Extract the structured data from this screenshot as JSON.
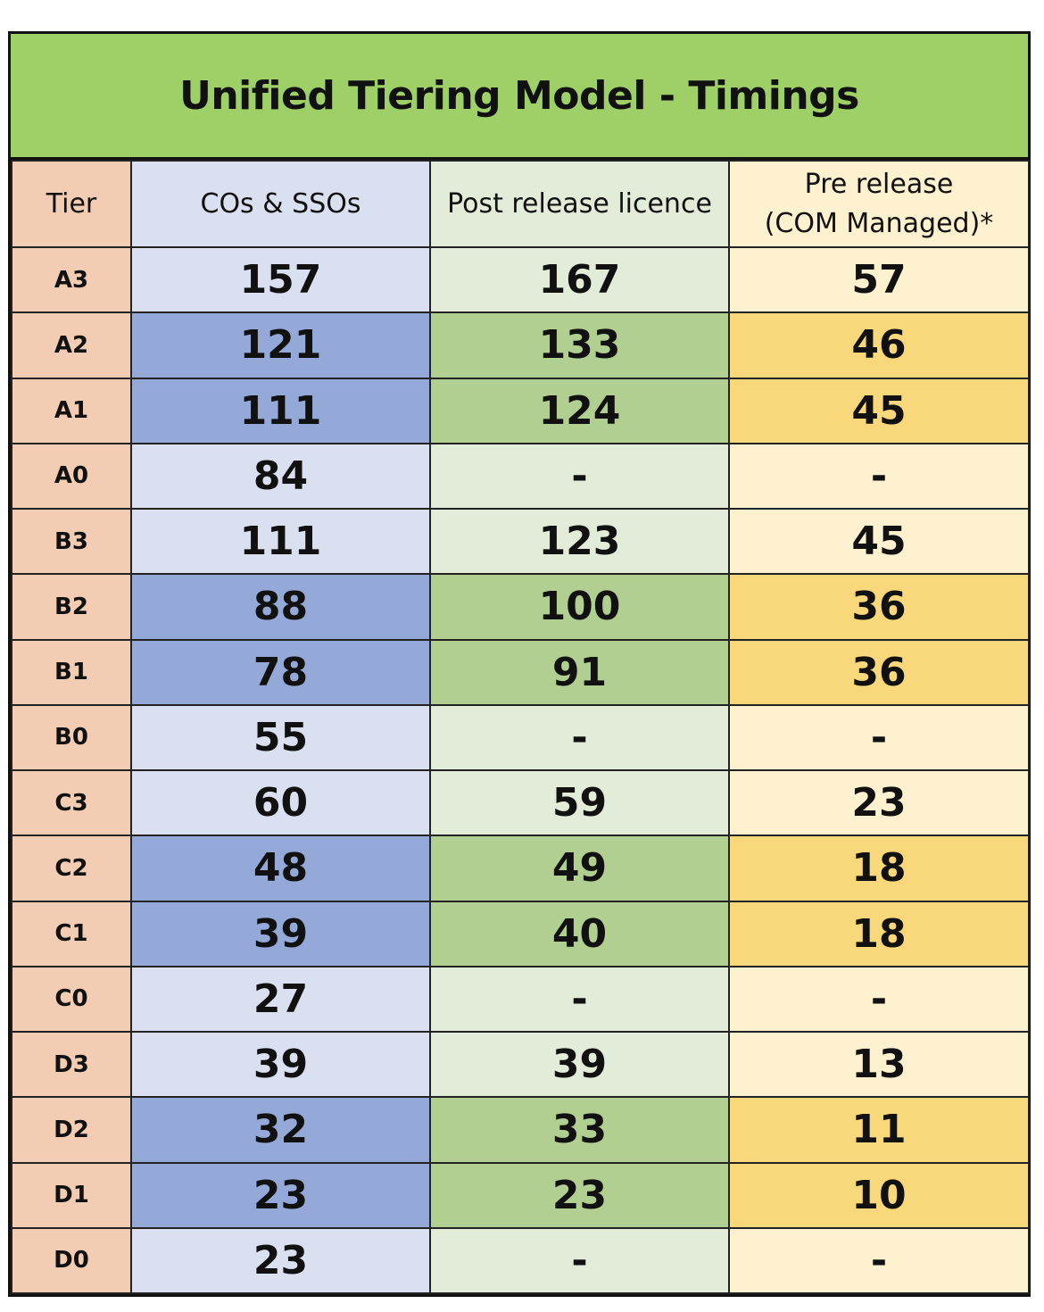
{
  "title": "Unified Tiering Model - Timings",
  "headers": {
    "tier": "Tier",
    "cos_ssos": "COs & SSOs",
    "post_release": "Post release licence",
    "pre_release_line1": "Pre release",
    "pre_release_line2": "(COM Managed)*"
  },
  "colors": {
    "title_bg": "#9fd067",
    "tier_bg": "#f2cdb4",
    "cos_light": "#dbe0f1",
    "cos_dark": "#95a9d8",
    "post_light": "#e2ecd9",
    "post_dark": "#b2cf92",
    "pre_light": "#fdf1d0",
    "pre_dark": "#f8d87b"
  },
  "rows": [
    {
      "tier": "A3",
      "cos": "157",
      "post": "167",
      "pre": "57",
      "shade": "light"
    },
    {
      "tier": "A2",
      "cos": "121",
      "post": "133",
      "pre": "46",
      "shade": "dark"
    },
    {
      "tier": "A1",
      "cos": "111",
      "post": "124",
      "pre": "45",
      "shade": "dark"
    },
    {
      "tier": "A0",
      "cos": "84",
      "post": "-",
      "pre": "-",
      "shade": "light"
    },
    {
      "tier": "B3",
      "cos": "111",
      "post": "123",
      "pre": "45",
      "shade": "light"
    },
    {
      "tier": "B2",
      "cos": "88",
      "post": "100",
      "pre": "36",
      "shade": "dark"
    },
    {
      "tier": "B1",
      "cos": "78",
      "post": "91",
      "pre": "36",
      "shade": "dark"
    },
    {
      "tier": "B0",
      "cos": "55",
      "post": "-",
      "pre": "-",
      "shade": "light"
    },
    {
      "tier": "C3",
      "cos": "60",
      "post": "59",
      "pre": "23",
      "shade": "light"
    },
    {
      "tier": "C2",
      "cos": "48",
      "post": "49",
      "pre": "18",
      "shade": "dark"
    },
    {
      "tier": "C1",
      "cos": "39",
      "post": "40",
      "pre": "18",
      "shade": "dark"
    },
    {
      "tier": "C0",
      "cos": "27",
      "post": "-",
      "pre": "-",
      "shade": "light"
    },
    {
      "tier": "D3",
      "cos": "39",
      "post": "39",
      "pre": "13",
      "shade": "light"
    },
    {
      "tier": "D2",
      "cos": "32",
      "post": "33",
      "pre": "11",
      "shade": "dark"
    },
    {
      "tier": "D1",
      "cos": "23",
      "post": "23",
      "pre": "10",
      "shade": "dark"
    },
    {
      "tier": "D0",
      "cos": "23",
      "post": "-",
      "pre": "-",
      "shade": "light"
    }
  ]
}
